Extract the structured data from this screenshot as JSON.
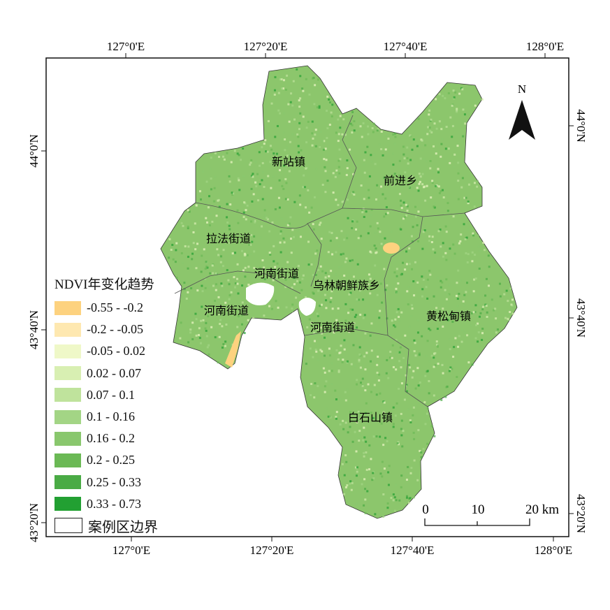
{
  "axes": {
    "top": [
      "127°0'E",
      "127°20'E",
      "127°40'E",
      "128°0'E"
    ],
    "bottom": [
      "127°0'E",
      "127°20'E",
      "127°40'E",
      "128°0'E"
    ],
    "left": [
      "44°0'N",
      "43°40'N",
      "43°20'N"
    ],
    "right": [
      "44°0'N",
      "43°40'N",
      "43°20'N"
    ]
  },
  "north_arrow": {
    "label": "N"
  },
  "scale_bar": {
    "labels": [
      "0",
      "10",
      "20 km"
    ]
  },
  "regions": [
    "新站镇",
    "前进乡",
    "拉法街道",
    "河南街道",
    "乌林朝鲜族乡",
    "河南街道",
    "河南街道",
    "黄松甸镇",
    "白石山镇"
  ],
  "legend": {
    "title": "NDVI年变化趋势",
    "items": [
      {
        "label": "-0.55 - -0.2",
        "color": "#fdd27f"
      },
      {
        "label": "-0.2 - -0.05",
        "color": "#fee8b0"
      },
      {
        "label": "-0.05 - 0.02",
        "color": "#eff8c8"
      },
      {
        "label": "0.02 - 0.07",
        "color": "#d8efb2"
      },
      {
        "label": "0.07 - 0.1",
        "color": "#bfe39c"
      },
      {
        "label": "0.1 - 0.16",
        "color": "#a3d585"
      },
      {
        "label": "0.16 - 0.2",
        "color": "#89c76d"
      },
      {
        "label": "0.2 - 0.25",
        "color": "#6bb955"
      },
      {
        "label": "0.25 - 0.33",
        "color": "#4aab45"
      },
      {
        "label": "0.33 - 0.73",
        "color": "#22a032"
      }
    ],
    "boundary_label": "案例区边界"
  }
}
